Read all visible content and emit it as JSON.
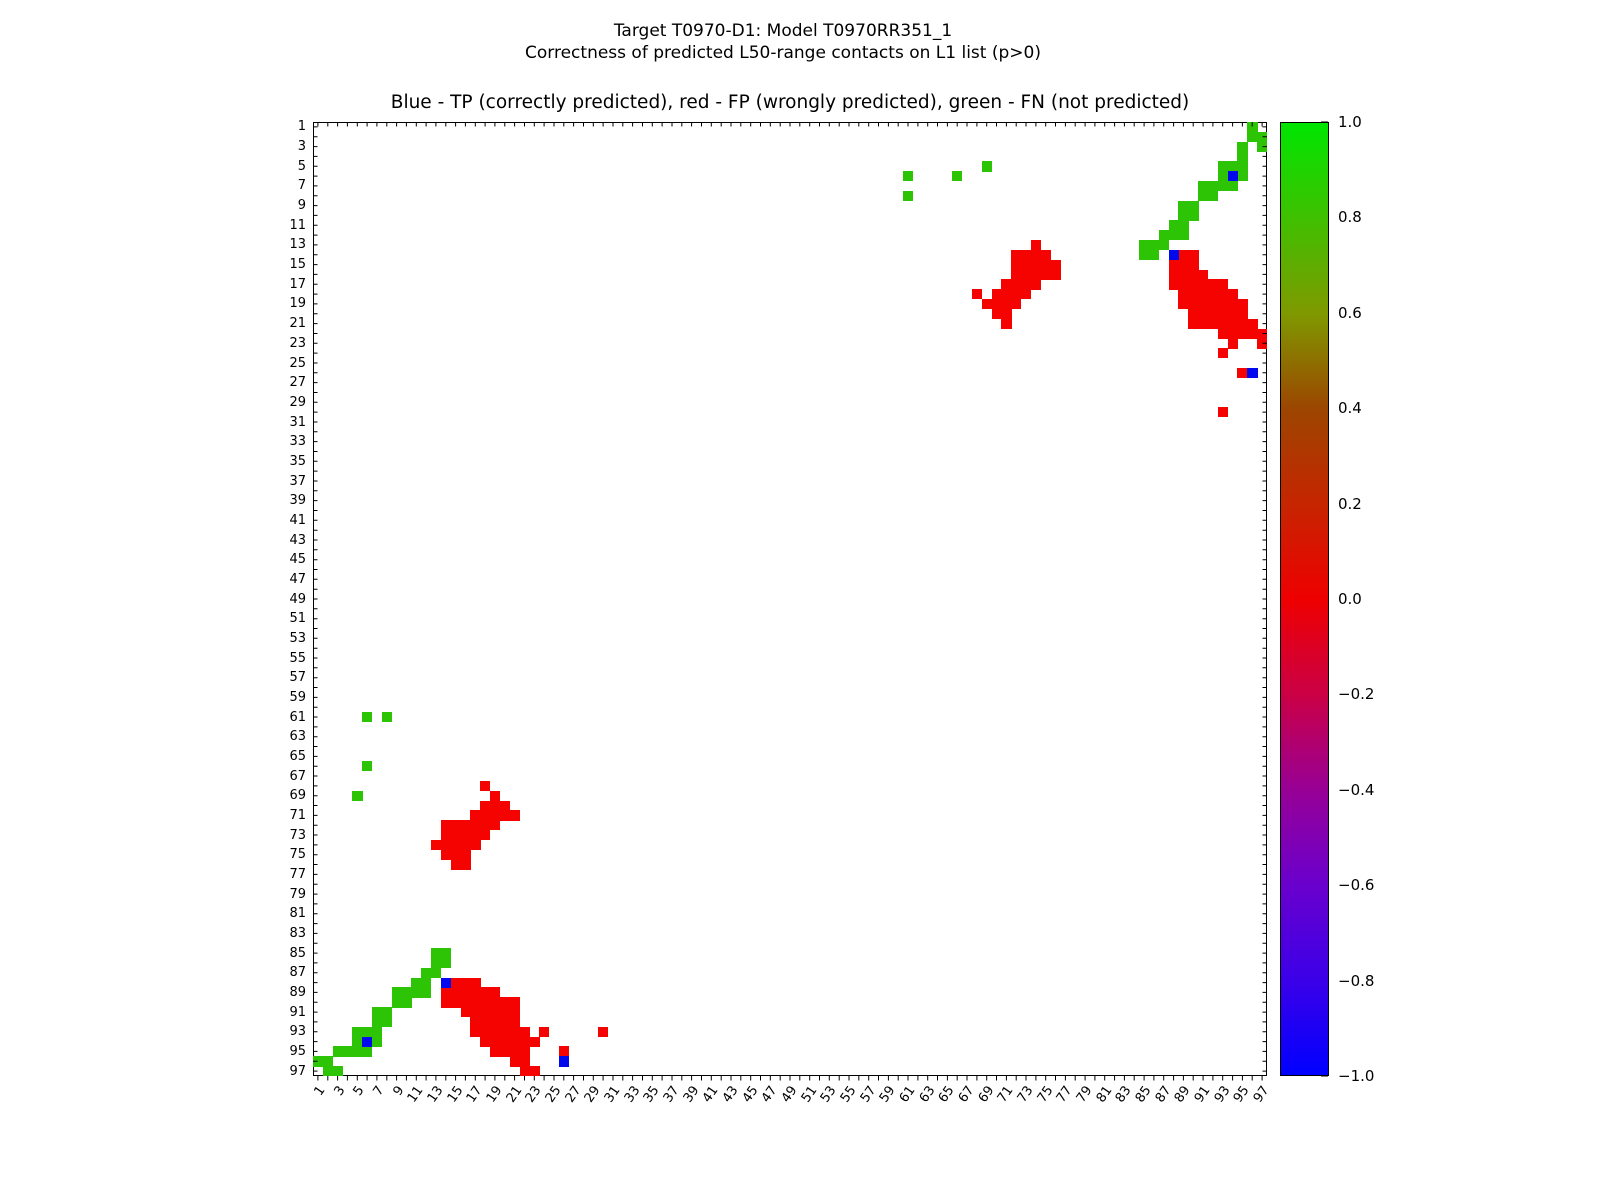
{
  "figure": {
    "suptitle_line1": "Target T0970-D1: Model T0970RR351_1",
    "suptitle_line2": "Correctness of predicted L50-range contacts on L1 list (p>0)",
    "axes_title": "Blue - TP (correctly predicted), red - FP (wrongly predicted), green - FN (not predicted)"
  },
  "chart_data": {
    "type": "heatmap",
    "grid_size": 97,
    "symmetric": true,
    "axis_range": [
      1,
      97
    ],
    "x_tick_labels": [
      "1",
      "3",
      "5",
      "7",
      "9",
      "11",
      "13",
      "15",
      "17",
      "19",
      "21",
      "23",
      "25",
      "27",
      "29",
      "31",
      "33",
      "35",
      "37",
      "39",
      "41",
      "43",
      "45",
      "47",
      "49",
      "51",
      "53",
      "55",
      "57",
      "59",
      "61",
      "63",
      "65",
      "67",
      "69",
      "71",
      "73",
      "75",
      "77",
      "79",
      "81",
      "83",
      "85",
      "87",
      "89",
      "91",
      "93",
      "95",
      "97"
    ],
    "y_tick_labels": [
      "1",
      "3",
      "5",
      "7",
      "9",
      "11",
      "13",
      "15",
      "17",
      "19",
      "21",
      "23",
      "25",
      "27",
      "29",
      "31",
      "33",
      "35",
      "37",
      "39",
      "41",
      "43",
      "45",
      "47",
      "49",
      "51",
      "53",
      "55",
      "57",
      "59",
      "61",
      "63",
      "65",
      "67",
      "69",
      "71",
      "73",
      "75",
      "77",
      "79",
      "81",
      "83",
      "85",
      "87",
      "89",
      "91",
      "93",
      "95",
      "97"
    ],
    "legend": {
      "tp_label": "TP (correctly predicted)",
      "fp_label": "FP (wrongly predicted)",
      "fn_label": "FN (not predicted)"
    },
    "colors": {
      "fn_green": "#2cc405",
      "fp_red": "#f50300",
      "tp_blue": "#0008ee",
      "axis": "#000000"
    },
    "cells_lower_triangle": {
      "comment_rows_cols": "each item is [row, col]; plot is symmetric, mirrored cell [col,row] is drawn automatically",
      "green_fn": [
        [
          61,
          6
        ],
        [
          61,
          8
        ],
        [
          66,
          6
        ],
        [
          69,
          5
        ],
        [
          85,
          13
        ],
        [
          85,
          14
        ],
        [
          86,
          13
        ],
        [
          86,
          14
        ],
        [
          87,
          12
        ],
        [
          87,
          13
        ],
        [
          88,
          11
        ],
        [
          88,
          12
        ],
        [
          89,
          9
        ],
        [
          89,
          10
        ],
        [
          89,
          11
        ],
        [
          89,
          12
        ],
        [
          90,
          9
        ],
        [
          90,
          10
        ],
        [
          91,
          7
        ],
        [
          91,
          8
        ],
        [
          92,
          7
        ],
        [
          92,
          8
        ],
        [
          93,
          5
        ],
        [
          93,
          6
        ],
        [
          93,
          7
        ],
        [
          94,
          5
        ],
        [
          94,
          7
        ],
        [
          95,
          3
        ],
        [
          95,
          4
        ],
        [
          95,
          5
        ],
        [
          95,
          6
        ],
        [
          96,
          1
        ],
        [
          96,
          2
        ],
        [
          97,
          2
        ],
        [
          97,
          3
        ]
      ],
      "red_fp": [
        [
          68,
          18
        ],
        [
          69,
          19
        ],
        [
          70,
          18
        ],
        [
          70,
          19
        ],
        [
          70,
          20
        ],
        [
          71,
          17
        ],
        [
          71,
          18
        ],
        [
          71,
          19
        ],
        [
          71,
          20
        ],
        [
          71,
          21
        ],
        [
          72,
          14
        ],
        [
          72,
          15
        ],
        [
          72,
          16
        ],
        [
          72,
          17
        ],
        [
          72,
          18
        ],
        [
          72,
          19
        ],
        [
          73,
          14
        ],
        [
          73,
          15
        ],
        [
          73,
          16
        ],
        [
          73,
          17
        ],
        [
          73,
          18
        ],
        [
          74,
          13
        ],
        [
          74,
          14
        ],
        [
          74,
          15
        ],
        [
          74,
          16
        ],
        [
          74,
          17
        ],
        [
          75,
          14
        ],
        [
          75,
          15
        ],
        [
          75,
          16
        ],
        [
          76,
          15
        ],
        [
          76,
          16
        ],
        [
          88,
          15
        ],
        [
          88,
          16
        ],
        [
          88,
          17
        ],
        [
          89,
          14
        ],
        [
          89,
          15
        ],
        [
          89,
          16
        ],
        [
          89,
          17
        ],
        [
          89,
          18
        ],
        [
          89,
          19
        ],
        [
          90,
          14
        ],
        [
          90,
          15
        ],
        [
          90,
          16
        ],
        [
          90,
          17
        ],
        [
          90,
          18
        ],
        [
          90,
          19
        ],
        [
          90,
          20
        ],
        [
          90,
          21
        ],
        [
          91,
          16
        ],
        [
          91,
          17
        ],
        [
          91,
          18
        ],
        [
          91,
          19
        ],
        [
          91,
          20
        ],
        [
          91,
          21
        ],
        [
          92,
          17
        ],
        [
          92,
          18
        ],
        [
          92,
          19
        ],
        [
          92,
          20
        ],
        [
          92,
          21
        ],
        [
          93,
          17
        ],
        [
          93,
          18
        ],
        [
          93,
          19
        ],
        [
          93,
          20
        ],
        [
          93,
          21
        ],
        [
          93,
          22
        ],
        [
          93,
          24
        ],
        [
          94,
          18
        ],
        [
          94,
          19
        ],
        [
          94,
          20
        ],
        [
          94,
          21
        ],
        [
          94,
          22
        ],
        [
          94,
          23
        ],
        [
          95,
          19
        ],
        [
          95,
          20
        ],
        [
          95,
          21
        ],
        [
          95,
          22
        ],
        [
          95,
          26
        ],
        [
          96,
          21
        ],
        [
          96,
          22
        ],
        [
          97,
          22
        ],
        [
          97,
          23
        ],
        [
          93,
          30
        ]
      ],
      "blue_tp": [
        [
          94,
          6
        ],
        [
          88,
          14
        ],
        [
          96,
          26
        ]
      ]
    },
    "colorbar": {
      "labels": [
        "1.0",
        "0.8",
        "0.6",
        "0.4",
        "0.2",
        "0.0",
        "−0.2",
        "−0.4",
        "−0.6",
        "−0.8",
        "−1.0"
      ],
      "range": [
        -1.0,
        1.0
      ],
      "stops": [
        {
          "v": 1.0,
          "c": "#00e600"
        },
        {
          "v": 0.8,
          "c": "#3fc000"
        },
        {
          "v": 0.6,
          "c": "#7f9900"
        },
        {
          "v": 0.4,
          "c": "#9c4600"
        },
        {
          "v": 0.2,
          "c": "#c62500"
        },
        {
          "v": 0.0,
          "c": "#ee0000"
        },
        {
          "v": -0.2,
          "c": "#cb0045"
        },
        {
          "v": -0.4,
          "c": "#980095"
        },
        {
          "v": -0.6,
          "c": "#6a00cd"
        },
        {
          "v": -0.8,
          "c": "#3b00e8"
        },
        {
          "v": -1.0,
          "c": "#0000ff"
        }
      ]
    }
  }
}
